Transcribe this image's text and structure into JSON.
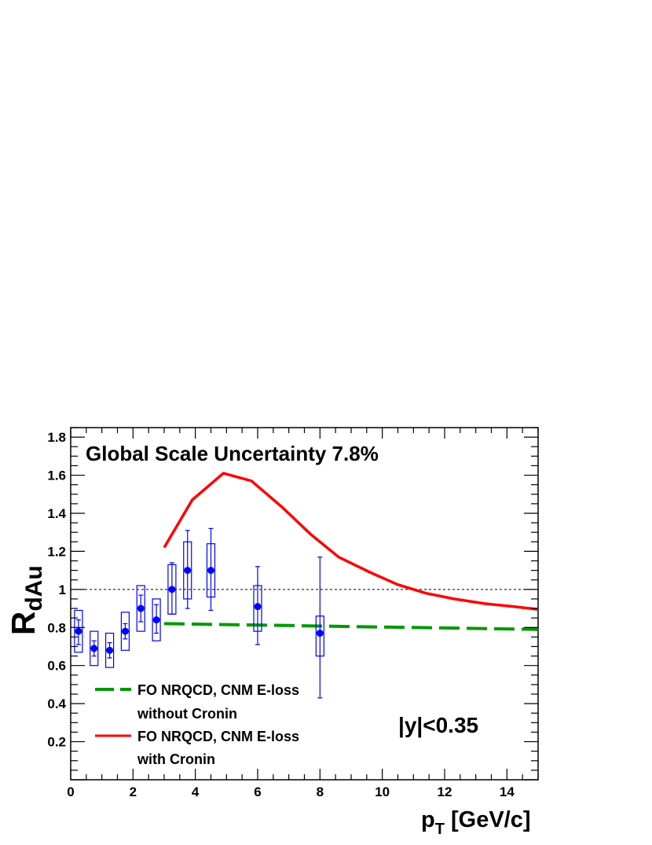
{
  "chart_data": {
    "type": "scatter",
    "title": "",
    "annotations": {
      "scale_uncertainty": "Global Scale Uncertainty 7.8%",
      "rapidity": "|y|<0.35"
    },
    "xlabel": {
      "main": "p",
      "sub": "T",
      "unit": " [GeV/c]"
    },
    "ylabel": {
      "main": "R",
      "sub": "dAu"
    },
    "xlim": [
      0,
      15
    ],
    "ylim": [
      0,
      1.85
    ],
    "x_ticks": [
      "0",
      "2",
      "4",
      "6",
      "8",
      "10",
      "12",
      "14"
    ],
    "y_ticks": [
      "0.2",
      "0.4",
      "0.6",
      "0.8",
      "1",
      "1.2",
      "1.4",
      "1.6",
      "1.8"
    ],
    "reference_line": 1.0,
    "grid": false,
    "data_color": "#0000ff",
    "points": [
      {
        "x": 0.25,
        "y": 0.78,
        "stat": [
          0.71,
          0.84
        ],
        "sys": [
          0.67,
          0.89
        ]
      },
      {
        "x": 0.75,
        "y": 0.69,
        "stat": [
          0.65,
          0.73
        ],
        "sys": [
          0.6,
          0.78
        ]
      },
      {
        "x": 1.25,
        "y": 0.68,
        "stat": [
          0.64,
          0.72
        ],
        "sys": [
          0.59,
          0.77
        ]
      },
      {
        "x": 1.75,
        "y": 0.78,
        "stat": [
          0.74,
          0.82
        ],
        "sys": [
          0.68,
          0.88
        ]
      },
      {
        "x": 2.25,
        "y": 0.9,
        "stat": [
          0.83,
          0.97
        ],
        "sys": [
          0.78,
          1.02
        ]
      },
      {
        "x": 2.75,
        "y": 0.84,
        "stat": [
          0.77,
          0.92
        ],
        "sys": [
          0.73,
          0.95
        ]
      },
      {
        "x": 3.25,
        "y": 1.0,
        "stat": [
          0.87,
          1.14
        ],
        "sys": [
          0.87,
          1.13
        ]
      },
      {
        "x": 3.75,
        "y": 1.1,
        "stat": [
          0.9,
          1.31
        ],
        "sys": [
          0.95,
          1.25
        ]
      },
      {
        "x": 4.5,
        "y": 1.1,
        "stat": [
          0.89,
          1.32
        ],
        "sys": [
          0.96,
          1.24
        ]
      },
      {
        "x": 6.0,
        "y": 0.91,
        "stat": [
          0.71,
          1.12
        ],
        "sys": [
          0.78,
          1.02
        ]
      },
      {
        "x": 8.0,
        "y": 0.77,
        "stat": [
          0.43,
          1.17
        ],
        "sys": [
          0.65,
          0.86
        ]
      }
    ],
    "series": [
      {
        "name": "FO NRQCD, CNM E-loss without Cronin",
        "color": "#009900",
        "style": "dashed",
        "x": [
          3.0,
          5.0,
          7.0,
          9.0,
          11.0,
          13.0,
          15.0
        ],
        "y": [
          0.82,
          0.815,
          0.81,
          0.805,
          0.8,
          0.795,
          0.79
        ]
      },
      {
        "name": "FO NRQCD, CNM E-loss with Cronin",
        "color": "#ff0000",
        "style": "solid",
        "x": [
          3.0,
          3.9,
          4.9,
          5.8,
          6.8,
          7.7,
          8.6,
          9.6,
          10.5,
          11.4,
          12.3,
          13.3,
          14.2,
          15.0
        ],
        "y": [
          1.22,
          1.47,
          1.61,
          1.57,
          1.43,
          1.29,
          1.17,
          1.09,
          1.025,
          0.98,
          0.95,
          0.925,
          0.91,
          0.895
        ]
      }
    ],
    "legend": {
      "placement": "bottom-left",
      "entries": [
        {
          "line1": "FO NRQCD, CNM E-loss",
          "line2": "without Cronin"
        },
        {
          "line1": "FO NRQCD, CNM E-loss",
          "line2": "with Cronin"
        }
      ]
    }
  }
}
